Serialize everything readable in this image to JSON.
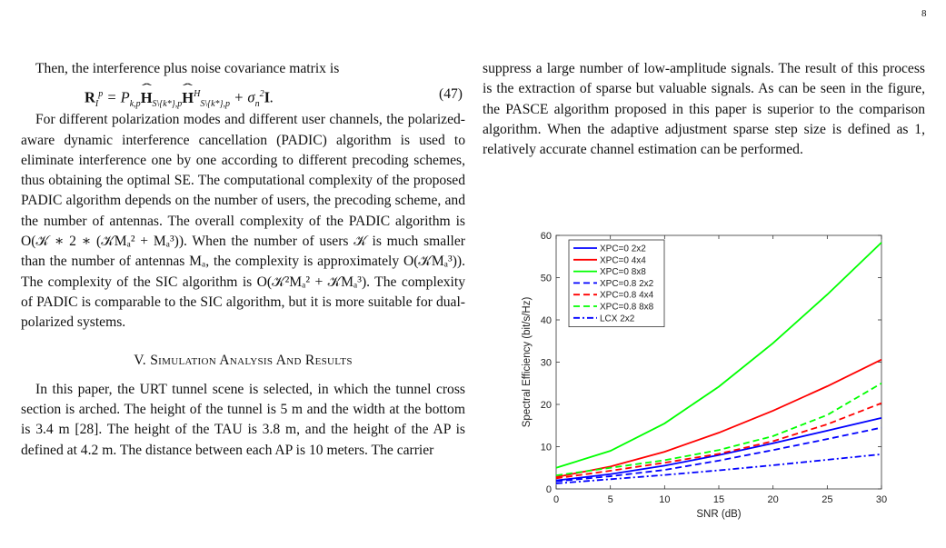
{
  "page_number": "8",
  "left": {
    "intro": "Then, the interference plus noise covariance matrix is",
    "eq47_number": "(47)",
    "para1": "For different polarization modes and different user channels, the polarized-aware dynamic interference cancellation (PADIC) algorithm is used to eliminate interference one by one according to different precoding schemes, thus obtaining the optimal SE. The computational complexity of the proposed PADIC algorithm depends on the number of users, the precoding scheme, and the number of antennas. The overall complexity of the PADIC algorithm is O(𝒦 ∗ 2 ∗ (𝒦Mₐ² + Mₐ³)). When the number of users 𝒦 is much smaller than the number of antennas Mₐ, the complexity is approximately O(𝒦Mₐ³)). The complexity of the SIC algorithm is O(𝒦²Mₐ² + 𝒦Mₐ³). The complexity of PADIC is comparable to the SIC algorithm, but it is more suitable for dual-polarized systems.",
    "section_heading": "V. Simulation Analysis And Results",
    "para2": "In this paper, the URT tunnel scene is selected, in which the tunnel cross section is arched. The height of the tunnel is 5 m and the width at the bottom is 3.4 m [28]. The height of the TAU is 3.8 m, and the height of the AP is defined at 4.2 m. The distance between each AP is 10 meters. The carrier"
  },
  "right": {
    "para1": "suppress a large number of low-amplitude signals. The result of this process is the extraction of sparse but valuable signals. As can be seen in the figure, the PASCE algorithm proposed in this paper is superior to the comparison algorithm. When the adaptive adjustment sparse step size is defined as 1, relatively accurate channel estimation can be performed."
  },
  "chart_data": {
    "type": "line",
    "xlabel": "SNR (dB)",
    "ylabel": "Spectral Efficiency (bit/s/Hz)",
    "xlim": [
      0,
      30
    ],
    "ylim": [
      0,
      60
    ],
    "xticks": [
      0,
      5,
      10,
      15,
      20,
      25,
      30
    ],
    "yticks": [
      0,
      10,
      20,
      30,
      40,
      50,
      60
    ],
    "grid": false,
    "legend_position": "top-left",
    "x": [
      0,
      5,
      10,
      15,
      20,
      25,
      30
    ],
    "series": [
      {
        "name": "XPC=0 2x2",
        "color": "#0000ff",
        "dash": "solid",
        "values": [
          2.0,
          3.5,
          5.5,
          8.0,
          10.8,
          13.8,
          16.8
        ]
      },
      {
        "name": "XPC=0 4x4",
        "color": "#ff0000",
        "dash": "solid",
        "values": [
          2.8,
          5.3,
          8.8,
          13.3,
          18.5,
          24.3,
          30.6
        ]
      },
      {
        "name": "XPC=0 8x8",
        "color": "#00ff00",
        "dash": "solid",
        "values": [
          5.0,
          9.0,
          15.5,
          24.2,
          34.5,
          46.0,
          58.3
        ]
      },
      {
        "name": "XPC=0.8 2x2",
        "color": "#0000ff",
        "dash": "dashed",
        "values": [
          1.8,
          3.0,
          4.5,
          6.7,
          9.2,
          11.8,
          14.5
        ]
      },
      {
        "name": "XPC=0.8 4x4",
        "color": "#ff0000",
        "dash": "dashed",
        "values": [
          2.5,
          4.3,
          6.2,
          8.3,
          11.3,
          15.3,
          20.3
        ]
      },
      {
        "name": "XPC=0.8 8x8",
        "color": "#00ff00",
        "dash": "dashed",
        "values": [
          3.2,
          5.0,
          6.8,
          9.2,
          12.5,
          17.5,
          25.0
        ]
      },
      {
        "name": "LCX 2x2",
        "color": "#0000ff",
        "dash": "dashdot",
        "values": [
          1.3,
          2.3,
          3.3,
          4.4,
          5.6,
          6.9,
          8.2
        ]
      }
    ]
  }
}
